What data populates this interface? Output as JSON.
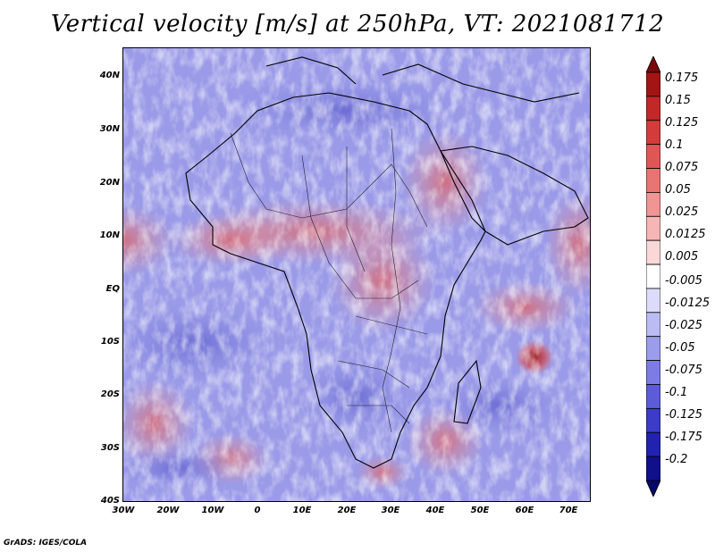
{
  "title": "Vertical velocity [m/s] at 250hPa, VT: 2021081712",
  "map": {
    "lat_labels": [
      "40N",
      "30N",
      "20N",
      "10N",
      "EQ",
      "10S",
      "20S",
      "30S",
      "40S"
    ],
    "lon_labels": [
      "30W",
      "20W",
      "10W",
      "0",
      "10E",
      "20E",
      "30E",
      "40E",
      "50E",
      "60E",
      "70E"
    ],
    "lon_range": [
      -30,
      75
    ],
    "lat_range": [
      -40,
      45
    ]
  },
  "colorbar": {
    "labels": [
      "0.175",
      "0.15",
      "0.125",
      "0.1",
      "0.075",
      "0.05",
      "0.025",
      "0.0125",
      "0.005",
      "-0.005",
      "-0.0125",
      "-0.025",
      "-0.05",
      "-0.075",
      "-0.1",
      "-0.125",
      "-0.175",
      "-0.2"
    ],
    "colors": [
      "#7a0a0a",
      "#a31515",
      "#c22828",
      "#d43c3c",
      "#e05656",
      "#e87474",
      "#f09494",
      "#f6b6b6",
      "#fbd8d8",
      "#ffffff",
      "#dcdcfa",
      "#bcbcf4",
      "#9c9cec",
      "#7c7ce4",
      "#5c5cd8",
      "#3c3cc8",
      "#2222b0",
      "#10108c",
      "#08086a"
    ]
  },
  "footer": "GrADS: IGES/COLA"
}
